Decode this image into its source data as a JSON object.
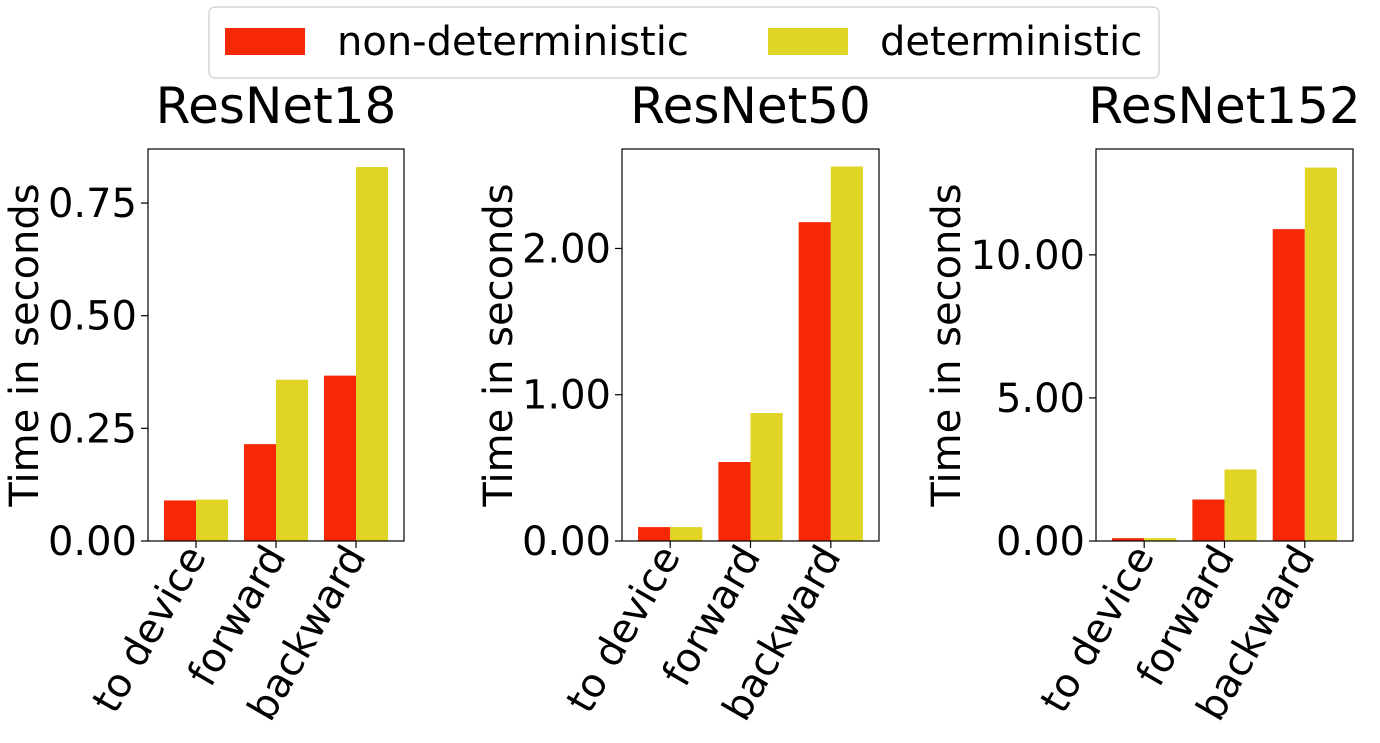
{
  "chart_data": [
    {
      "type": "bar",
      "title": "ResNet18",
      "ylabel": "Time in seconds",
      "categories": [
        "to device",
        "forward",
        "backward"
      ],
      "ylim": [
        0,
        0.87
      ],
      "yticks": [
        0,
        0.25,
        0.5,
        0.75
      ],
      "ytick_labels": [
        "0.00",
        "0.25",
        "0.50",
        "0.75"
      ],
      "series": [
        {
          "name": "non-deterministic",
          "values": [
            0.09,
            0.215,
            0.367
          ]
        },
        {
          "name": "deterministic",
          "values": [
            0.092,
            0.358,
            0.83
          ]
        }
      ]
    },
    {
      "type": "bar",
      "title": "ResNet50",
      "ylabel": "Time in seconds",
      "categories": [
        "to device",
        "forward",
        "backward"
      ],
      "ylim": [
        0,
        2.68
      ],
      "yticks": [
        0,
        1,
        2
      ],
      "ytick_labels": [
        "0.00",
        "1.00",
        "2.00"
      ],
      "series": [
        {
          "name": "non-deterministic",
          "values": [
            0.095,
            0.54,
            2.18
          ]
        },
        {
          "name": "deterministic",
          "values": [
            0.095,
            0.875,
            2.56
          ]
        }
      ]
    },
    {
      "type": "bar",
      "title": "ResNet152",
      "ylabel": "Time in seconds",
      "categories": [
        "to device",
        "forward",
        "backward"
      ],
      "ylim": [
        0,
        13.7
      ],
      "yticks": [
        0,
        5,
        10
      ],
      "ytick_labels": [
        "0.00",
        "5.00",
        "10.00"
      ],
      "series": [
        {
          "name": "non-deterministic",
          "values": [
            0.1,
            1.45,
            10.9
          ]
        },
        {
          "name": "deterministic",
          "values": [
            0.1,
            2.5,
            13.05
          ]
        }
      ]
    }
  ],
  "legend": {
    "placement": "top-center",
    "entries": [
      {
        "label": "non-deterministic",
        "color": "#f62806"
      },
      {
        "label": "deterministic",
        "color": "#e0d425"
      }
    ]
  },
  "colors": {
    "non_deterministic": "#f62806",
    "deterministic": "#e0d425"
  },
  "x_tick_rotation_deg": 60,
  "grid": false
}
